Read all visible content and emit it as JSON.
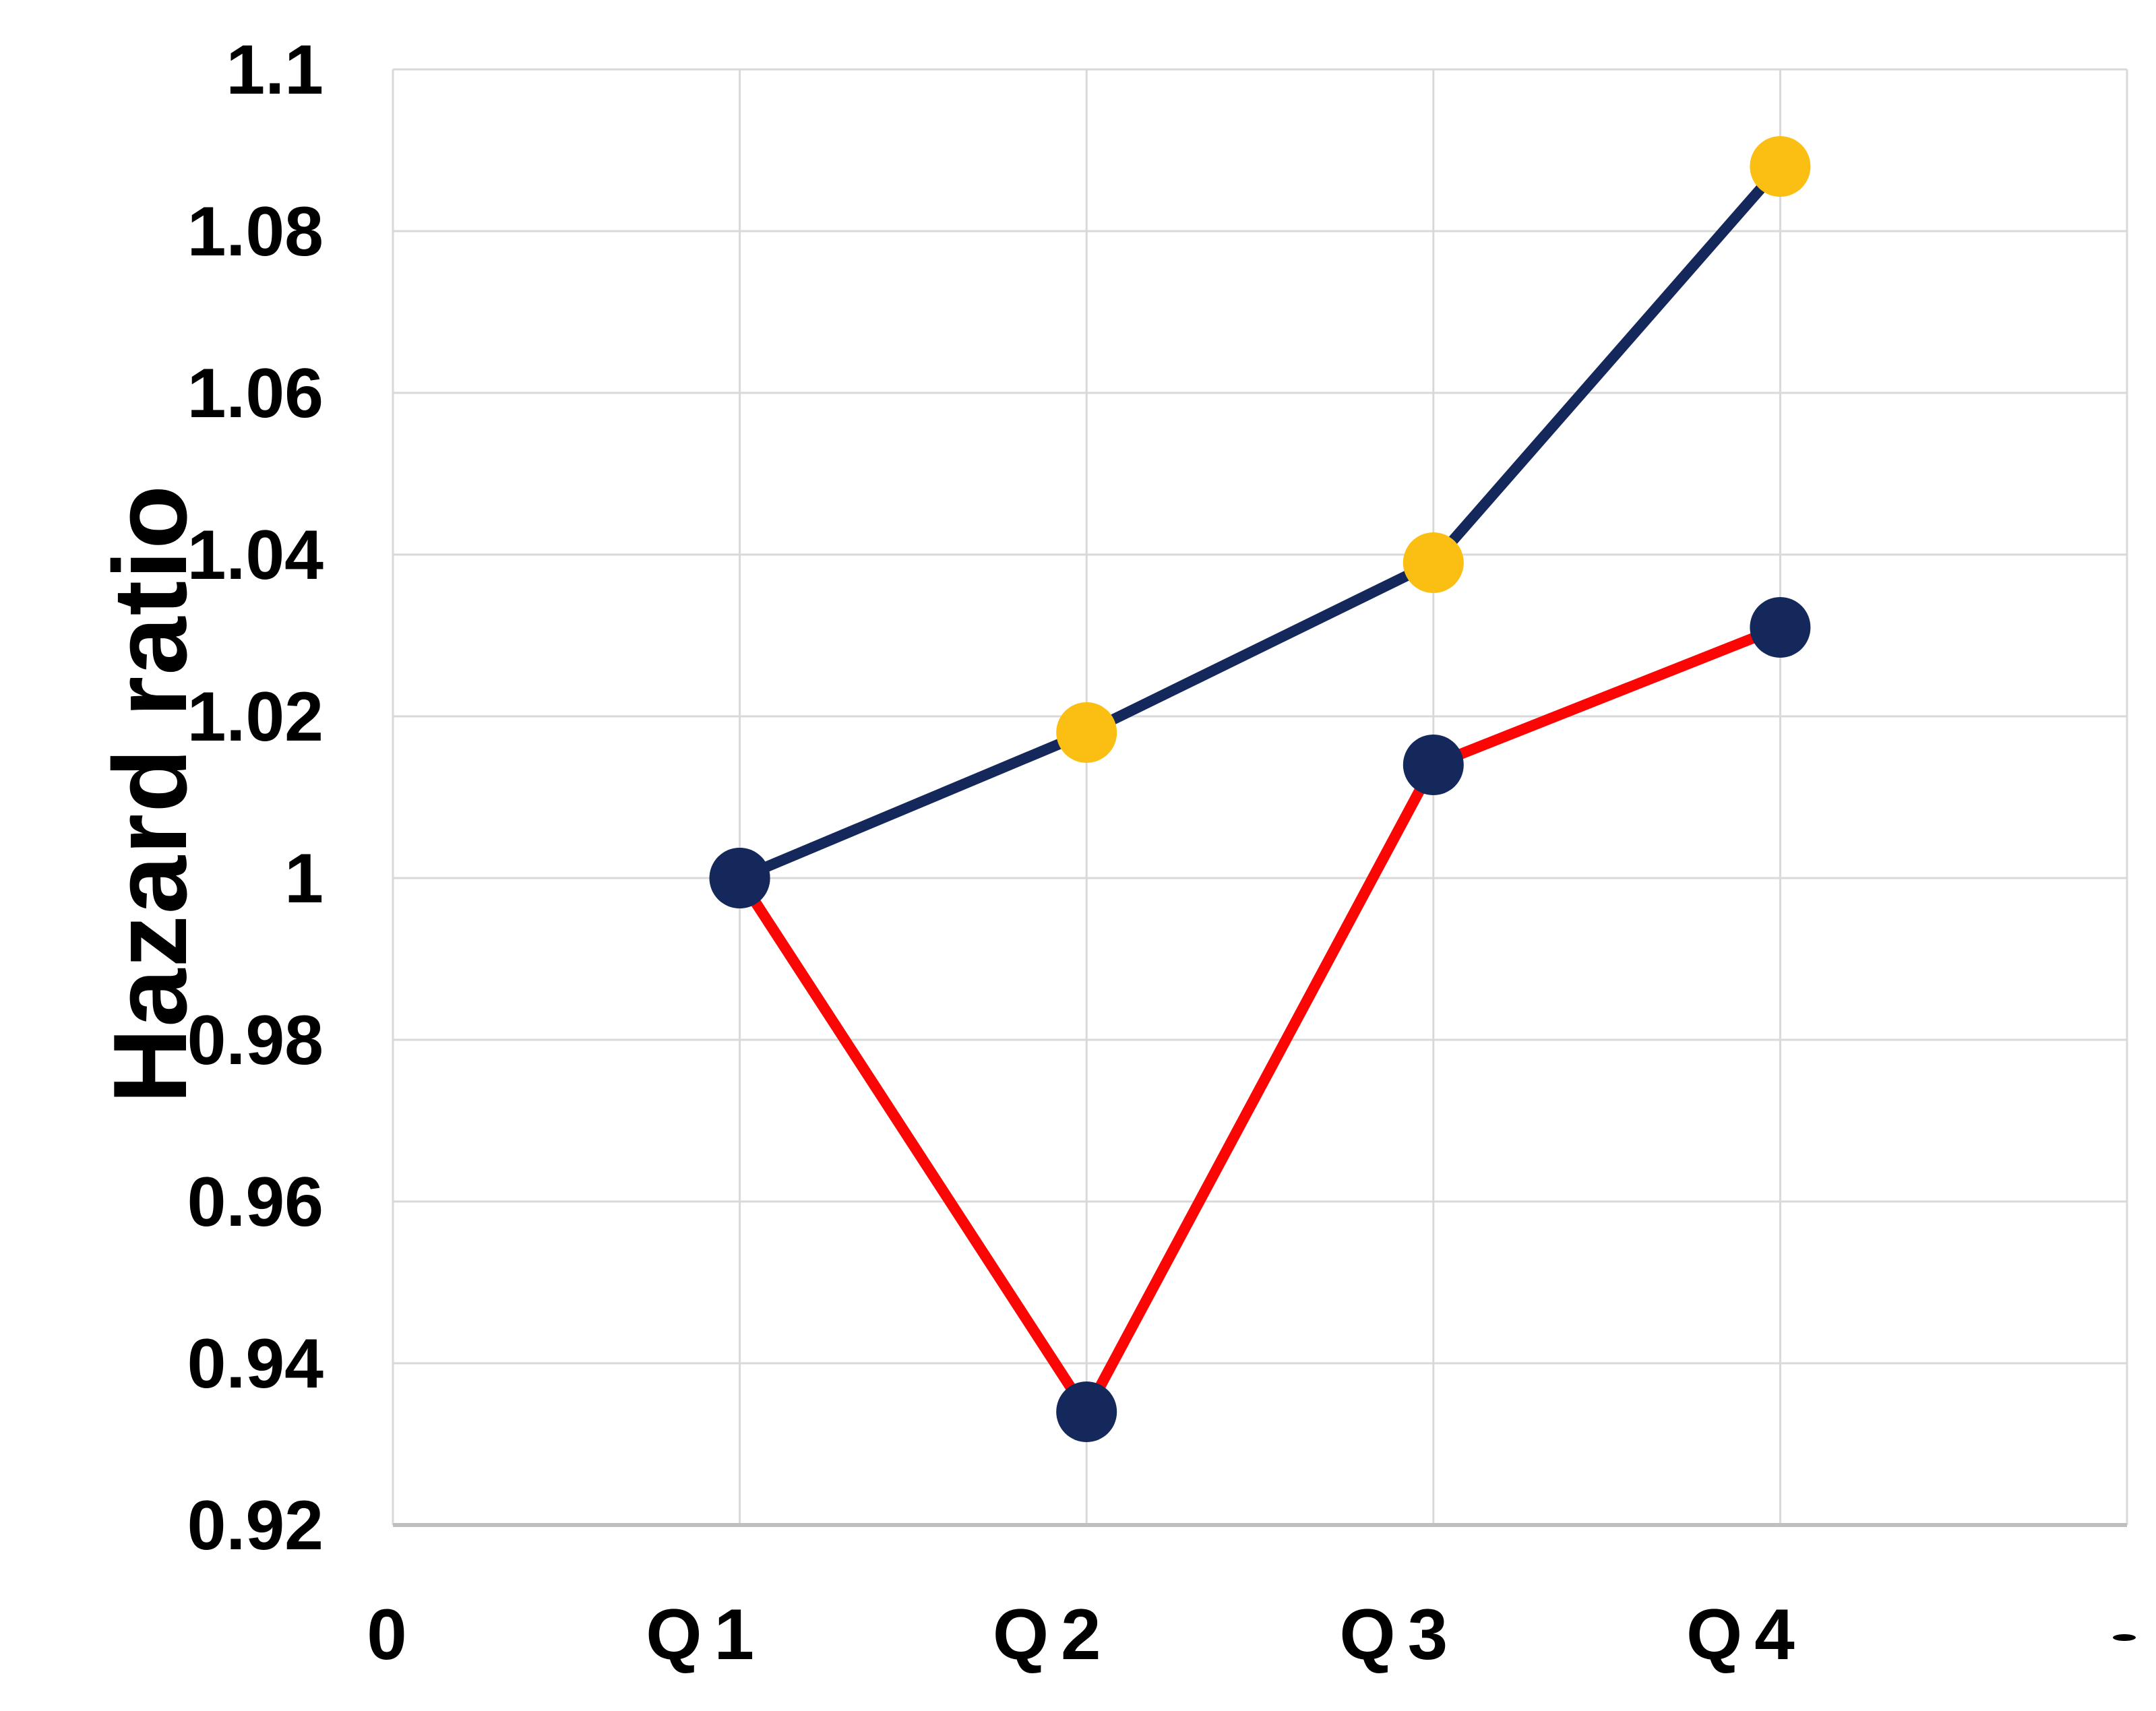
{
  "chart_data": {
    "type": "line",
    "title": "",
    "xlabel": "",
    "ylabel": "Hazard ratio",
    "categories": [
      "0",
      "Q1",
      "Q2",
      "Q3",
      "Q4"
    ],
    "series": [
      {
        "name": "upper-navy-series",
        "line_color": "#14285C",
        "x": [
          "Q1",
          "Q2",
          "Q3",
          "Q4"
        ],
        "values": [
          1.0,
          1.018,
          1.039,
          1.088
        ],
        "marker_colors": [
          "#14285C",
          "#FBBE13",
          "#FBBE13",
          "#FBBE13"
        ]
      },
      {
        "name": "lower-red-series",
        "line_color": "#FB0505",
        "x": [
          "Q1",
          "Q2",
          "Q3",
          "Q4"
        ],
        "values": [
          1.0,
          0.934,
          1.014,
          1.031
        ],
        "marker_colors": [
          "#14285C",
          "#14285C",
          "#14285C",
          "#14285C"
        ]
      }
    ],
    "ylim": [
      0.92,
      1.1
    ],
    "ytick_step": 0.02,
    "ytick_labels": [
      "1.1",
      "1.08",
      "1.06",
      "1.04",
      "1.02",
      "1",
      "0.98",
      "0.96",
      "0.94",
      "0.92"
    ],
    "xtick_labels": [
      "0",
      "Q1",
      "Q2",
      "Q3",
      "Q4"
    ],
    "grid": true,
    "legend": false,
    "colors": {
      "gridline": "#D9D9D9",
      "axis_line": "#BFBFBF",
      "text": "#000000",
      "background": "#FFFFFF"
    }
  },
  "artifact": {
    "description": "tiny clipped glyph fragment near bottom-right corner",
    "color": "#000000"
  }
}
